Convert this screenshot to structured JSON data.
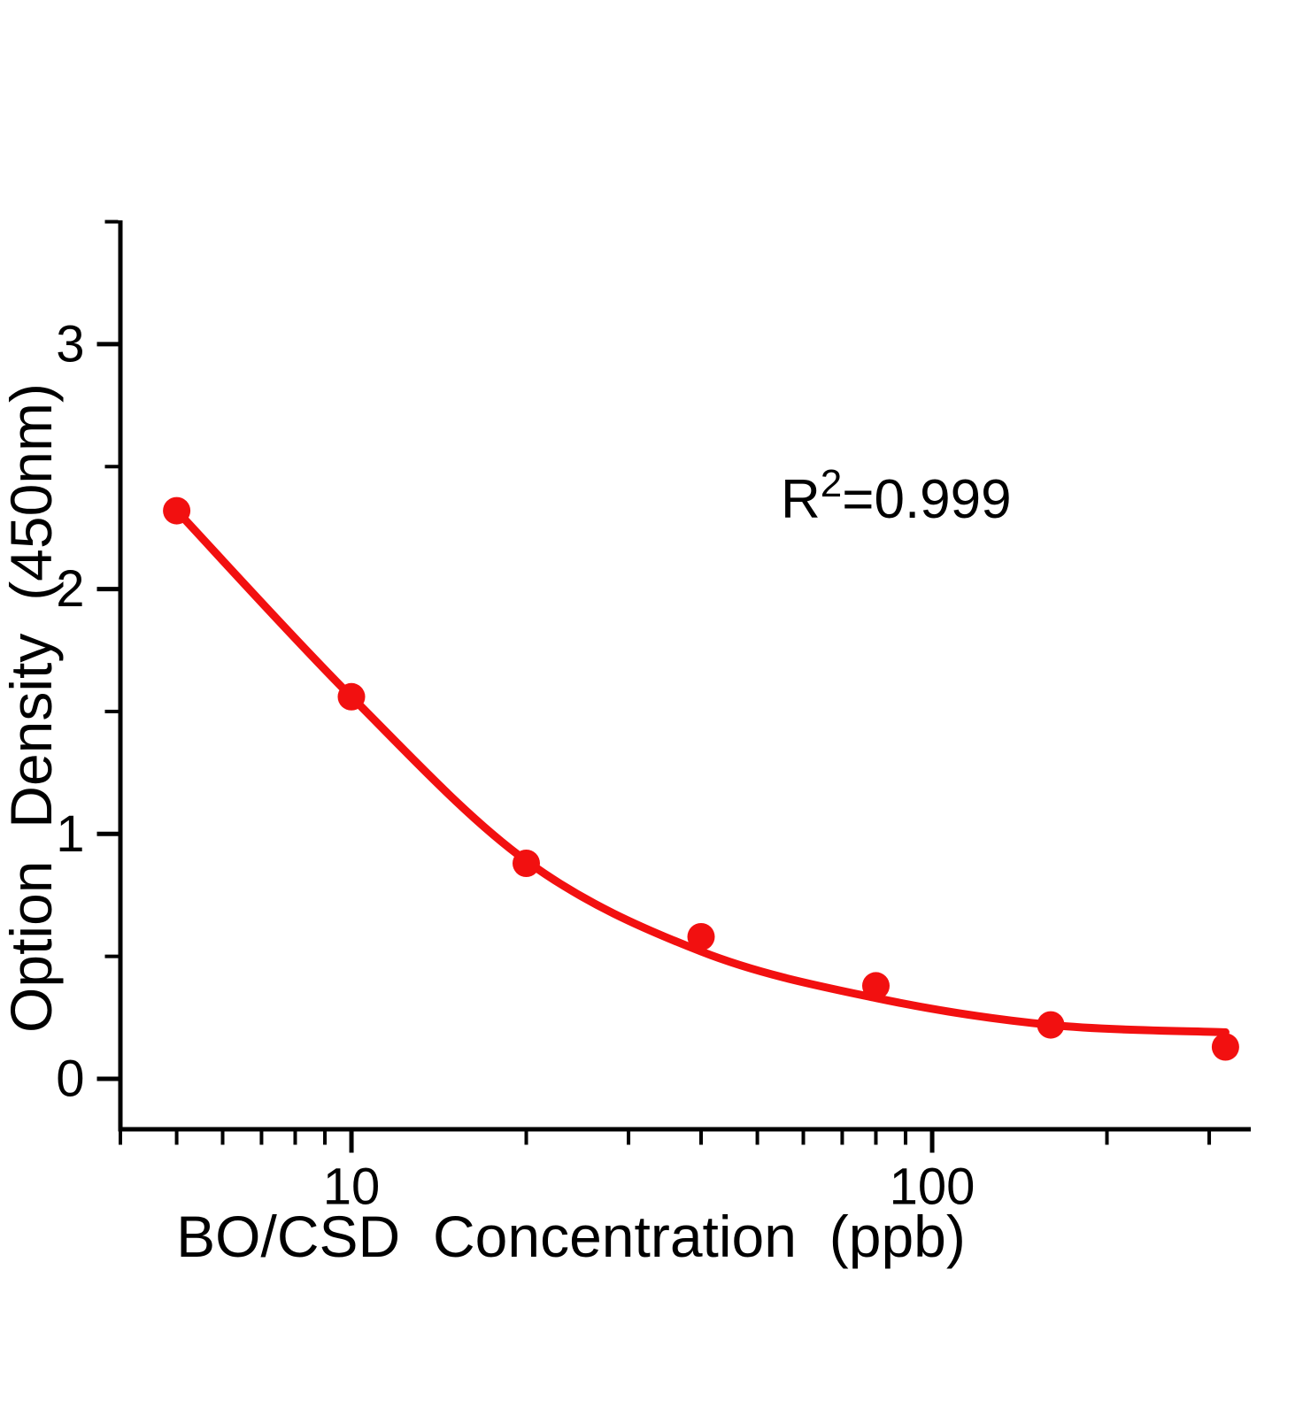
{
  "figure": {
    "background": "#ffffff"
  },
  "chart_data": {
    "type": "scatter",
    "subtype": "scatter-with-fit-line",
    "title": "",
    "xlabel": "BO/CSD Concentration (ppb)",
    "ylabel": "Option Density (450nm)",
    "x_scale": "log10",
    "y_scale": "linear",
    "xlim": [
      4,
      354
    ],
    "ylim": [
      -0.21,
      3.51
    ],
    "grid": "off",
    "legend_position": "none",
    "x_ticks_major": [
      10,
      100
    ],
    "x_ticks_minor": [
      4,
      5,
      6,
      7,
      8,
      9,
      20,
      30,
      40,
      50,
      60,
      70,
      80,
      90,
      200,
      300
    ],
    "y_ticks_major": [
      0,
      1,
      2,
      3
    ],
    "y_ticks_minor": [
      0.5,
      1.5,
      2.5,
      3.5
    ],
    "series": [
      {
        "name": "standard-points",
        "type": "scatter",
        "x": [
          5,
          10,
          20,
          40,
          80,
          160,
          320
        ],
        "y": [
          2.32,
          1.56,
          0.88,
          0.58,
          0.38,
          0.22,
          0.13
        ]
      },
      {
        "name": "fitted-curve",
        "type": "line",
        "x": [
          5,
          10,
          20,
          40,
          80,
          160,
          320
        ],
        "y": [
          2.32,
          1.56,
          0.89,
          0.52,
          0.33,
          0.22,
          0.19
        ]
      }
    ],
    "annotation": {
      "base": "R",
      "sup": "2",
      "rest": "=0.999"
    },
    "colors": {
      "series": "#F21010",
      "axis": "#000000",
      "annotation": "#000000"
    }
  }
}
